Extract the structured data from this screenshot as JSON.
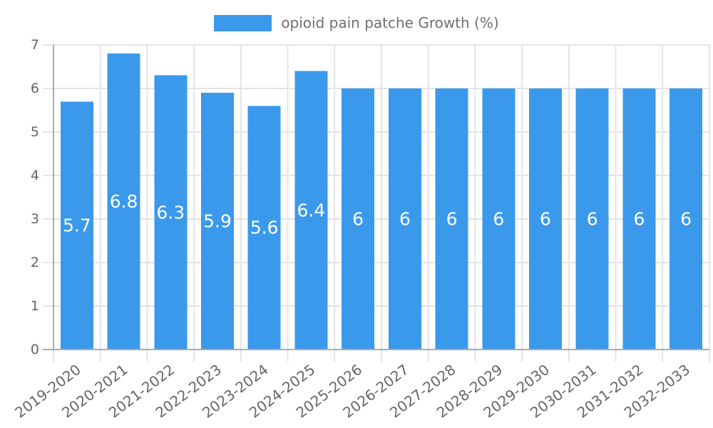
{
  "chart_data": {
    "type": "bar",
    "title": "opioid pain patche Growth (%)",
    "series_name": "opioid pain patche Growth (%)",
    "legend_position": "top",
    "categories": [
      "2019-2020",
      "2020-2021",
      "2021-2022",
      "2022-2023",
      "2023-2024",
      "2024-2025",
      "2025-2026",
      "2026-2027",
      "2027-2028",
      "2028-2029",
      "2029-2030",
      "2030-2031",
      "2031-2032",
      "2032-2033"
    ],
    "values": [
      5.7,
      6.8,
      6.3,
      5.9,
      5.6,
      6.4,
      6,
      6,
      6,
      6,
      6,
      6,
      6,
      6
    ],
    "value_labels": [
      "5.7",
      "6.8",
      "6.3",
      "5.9",
      "5.6",
      "6.4",
      "6",
      "6",
      "6",
      "6",
      "6",
      "6",
      "6",
      "6"
    ],
    "xlabel": "",
    "ylabel": "",
    "ylim": [
      0,
      7
    ],
    "yticks": [
      0,
      1,
      2,
      3,
      4,
      5,
      6,
      7
    ],
    "grid": true,
    "colors": {
      "bar": "#3B99EC",
      "grid": "#E4E4E4",
      "axis": "#ABABAB",
      "tick_label": "#666666",
      "legend_label": "#6F6F6F",
      "value_label": "#FFFFFF"
    }
  }
}
